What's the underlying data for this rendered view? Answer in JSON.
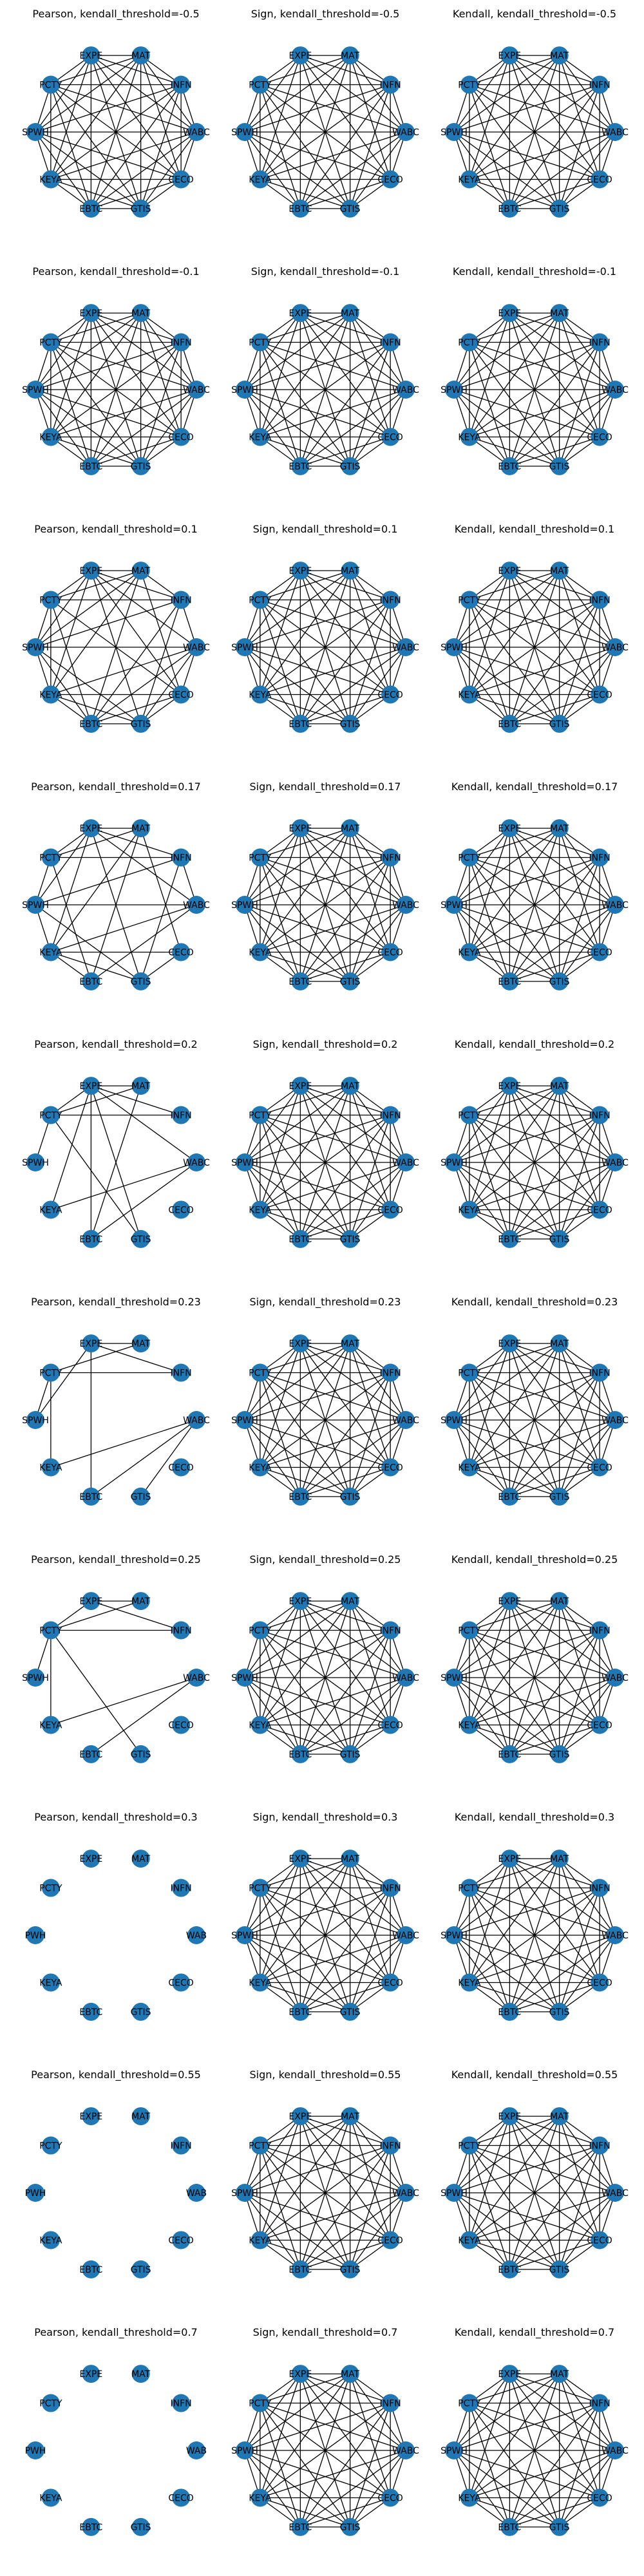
{
  "nodes": [
    "EXPE",
    "MAT",
    "INFN",
    "WABC",
    "CECO",
    "GTIS",
    "EBTC",
    "KEYA",
    "SPWH",
    "PCTY"
  ],
  "short_labels": {
    "SPWH": "PWH",
    "WABC": "WAB"
  },
  "colors": {
    "node": "#1f77b4",
    "edge": "#000000"
  },
  "thresholds": [
    {
      "threshold": "-0.5",
      "pearson_density": "full",
      "pearson_title": "Pearson, kendall_threshold=-0.5",
      "sign_title": "Sign, kendall_threshold=-0.5",
      "kendall_title": "Kendall, kendall_threshold=-0.5"
    },
    {
      "threshold": "-0.1",
      "pearson_density": "full",
      "pearson_title": "Pearson, kendall_threshold=-0.1",
      "sign_title": "Sign, kendall_threshold=-0.1",
      "kendall_title": "Kendall, kendall_threshold=-0.1"
    },
    {
      "threshold": "0.1",
      "pearson_density": "dense",
      "pearson_title": "Pearson, kendall_threshold=0.1",
      "sign_title": "Sign, kendall_threshold=0.1",
      "kendall_title": "Kendall, kendall_threshold=0.1"
    },
    {
      "threshold": "0.17",
      "pearson_density": "medium",
      "pearson_title": "Pearson, kendall_threshold=0.17",
      "sign_title": "Sign, kendall_threshold=0.17",
      "kendall_title": "Kendall, kendall_threshold=0.17"
    },
    {
      "threshold": "0.2",
      "pearson_density": "sparse",
      "pearson_title": "Pearson, kendall_threshold=0.2",
      "sign_title": "Sign, kendall_threshold=0.2",
      "kendall_title": "Kendall, kendall_threshold=0.2"
    },
    {
      "threshold": "0.23",
      "pearson_density": "sparser",
      "pearson_title": "Pearson, kendall_threshold=0.23",
      "sign_title": "Sign, kendall_threshold=0.23",
      "kendall_title": "Kendall, kendall_threshold=0.23"
    },
    {
      "threshold": "0.25",
      "pearson_density": "sparsest",
      "pearson_title": "Pearson, kendall_threshold=0.25",
      "sign_title": "Sign, kendall_threshold=0.25",
      "kendall_title": "Kendall, kendall_threshold=0.25"
    },
    {
      "threshold": "0.3",
      "pearson_density": "empty",
      "pearson_title": "Pearson, kendall_threshold=0.3",
      "sign_title": "Sign, kendall_threshold=0.3",
      "kendall_title": "Kendall, kendall_threshold=0.3"
    },
    {
      "threshold": "0.55",
      "pearson_density": "empty",
      "pearson_title": "Pearson, kendall_threshold=0.55",
      "sign_title": "Sign, kendall_threshold=0.55",
      "kendall_title": "Kendall, kendall_threshold=0.55"
    },
    {
      "threshold": "0.7",
      "pearson_density": "empty",
      "pearson_title": "Pearson, kendall_threshold=0.7",
      "sign_title": "Sign, kendall_threshold=0.7",
      "kendall_title": "Kendall, kendall_threshold=0.7"
    }
  ],
  "pearson_edges": {
    "full": "all",
    "dense": [
      [
        "EXPE",
        "MAT"
      ],
      [
        "EXPE",
        "INFN"
      ],
      [
        "EXPE",
        "WABC"
      ],
      [
        "EXPE",
        "CECO"
      ],
      [
        "EXPE",
        "GTIS"
      ],
      [
        "EXPE",
        "KEYA"
      ],
      [
        "EXPE",
        "SPWH"
      ],
      [
        "EXPE",
        "PCTY"
      ],
      [
        "MAT",
        "INFN"
      ],
      [
        "MAT",
        "CECO"
      ],
      [
        "MAT",
        "EBTC"
      ],
      [
        "MAT",
        "KEYA"
      ],
      [
        "MAT",
        "SPWH"
      ],
      [
        "MAT",
        "PCTY"
      ],
      [
        "INFN",
        "WABC"
      ],
      [
        "INFN",
        "GTIS"
      ],
      [
        "INFN",
        "EBTC"
      ],
      [
        "INFN",
        "SPWH"
      ],
      [
        "INFN",
        "PCTY"
      ],
      [
        "WABC",
        "CECO"
      ],
      [
        "WABC",
        "GTIS"
      ],
      [
        "WABC",
        "EBTC"
      ],
      [
        "WABC",
        "KEYA"
      ],
      [
        "WABC",
        "SPWH"
      ],
      [
        "CECO",
        "GTIS"
      ],
      [
        "CECO",
        "EBTC"
      ],
      [
        "CECO",
        "KEYA"
      ],
      [
        "CECO",
        "PCTY"
      ],
      [
        "GTIS",
        "EBTC"
      ],
      [
        "GTIS",
        "KEYA"
      ],
      [
        "GTIS",
        "SPWH"
      ],
      [
        "EBTC",
        "KEYA"
      ],
      [
        "EBTC",
        "SPWH"
      ],
      [
        "EBTC",
        "PCTY"
      ],
      [
        "KEYA",
        "SPWH"
      ],
      [
        "KEYA",
        "PCTY"
      ],
      [
        "SPWH",
        "PCTY"
      ]
    ],
    "medium": [
      [
        "EXPE",
        "MAT"
      ],
      [
        "EXPE",
        "INFN"
      ],
      [
        "EXPE",
        "WABC"
      ],
      [
        "EXPE",
        "GTIS"
      ],
      [
        "EXPE",
        "KEYA"
      ],
      [
        "EXPE",
        "SPWH"
      ],
      [
        "EXPE",
        "PCTY"
      ],
      [
        "MAT",
        "CECO"
      ],
      [
        "MAT",
        "EBTC"
      ],
      [
        "MAT",
        "KEYA"
      ],
      [
        "MAT",
        "PCTY"
      ],
      [
        "INFN",
        "WABC"
      ],
      [
        "INFN",
        "GTIS"
      ],
      [
        "INFN",
        "SPWH"
      ],
      [
        "INFN",
        "PCTY"
      ],
      [
        "WABC",
        "EBTC"
      ],
      [
        "WABC",
        "KEYA"
      ],
      [
        "WABC",
        "SPWH"
      ],
      [
        "CECO",
        "GTIS"
      ],
      [
        "CECO",
        "KEYA"
      ],
      [
        "GTIS",
        "KEYA"
      ],
      [
        "GTIS",
        "SPWH"
      ],
      [
        "EBTC",
        "KEYA"
      ],
      [
        "EBTC",
        "PCTY"
      ],
      [
        "KEYA",
        "SPWH"
      ],
      [
        "SPWH",
        "PCTY"
      ]
    ],
    "sparse": [
      [
        "EXPE",
        "MAT"
      ],
      [
        "EXPE",
        "INFN"
      ],
      [
        "EXPE",
        "WABC"
      ],
      [
        "EXPE",
        "GTIS"
      ],
      [
        "EXPE",
        "KEYA"
      ],
      [
        "EXPE",
        "EBTC"
      ],
      [
        "EXPE",
        "PCTY"
      ],
      [
        "MAT",
        "PCTY"
      ],
      [
        "MAT",
        "EBTC"
      ],
      [
        "INFN",
        "PCTY"
      ],
      [
        "WABC",
        "KEYA"
      ],
      [
        "WABC",
        "EBTC"
      ],
      [
        "GTIS",
        "PCTY"
      ],
      [
        "SPWH",
        "PCTY"
      ]
    ],
    "sparser": [
      [
        "EXPE",
        "MAT"
      ],
      [
        "EXPE",
        "INFN"
      ],
      [
        "EXPE",
        "SPWH"
      ],
      [
        "EXPE",
        "EBTC"
      ],
      [
        "MAT",
        "PCTY"
      ],
      [
        "INFN",
        "PCTY"
      ],
      [
        "WABC",
        "KEYA"
      ],
      [
        "WABC",
        "GTIS"
      ],
      [
        "WABC",
        "EBTC"
      ],
      [
        "KEYA",
        "PCTY"
      ],
      [
        "SPWH",
        "PCTY"
      ]
    ],
    "sparsest": [
      [
        "EXPE",
        "MAT"
      ],
      [
        "EXPE",
        "INFN"
      ],
      [
        "EXPE",
        "PCTY"
      ],
      [
        "MAT",
        "PCTY"
      ],
      [
        "INFN",
        "PCTY"
      ],
      [
        "WABC",
        "KEYA"
      ],
      [
        "WABC",
        "EBTC"
      ],
      [
        "GTIS",
        "PCTY"
      ],
      [
        "SPWH",
        "PCTY"
      ],
      [
        "KEYA",
        "PCTY"
      ]
    ],
    "empty": []
  }
}
